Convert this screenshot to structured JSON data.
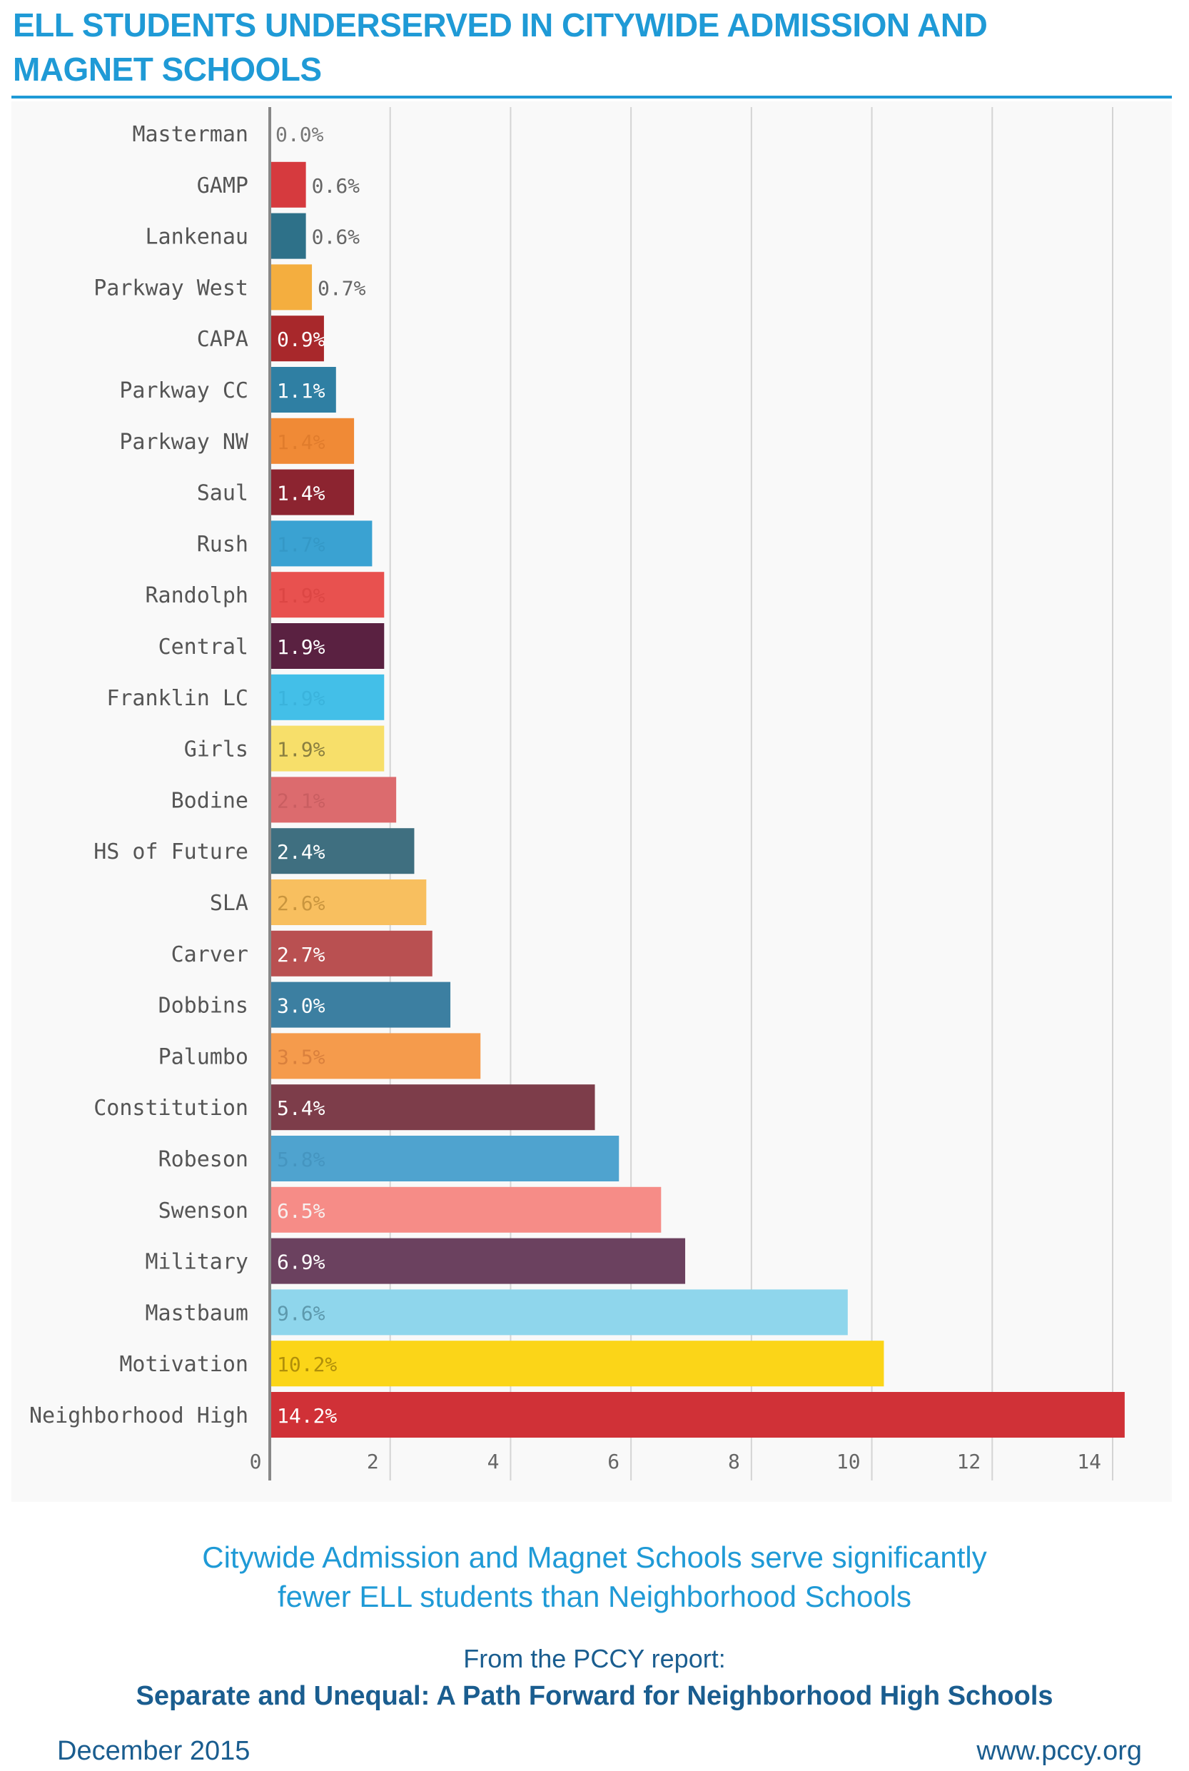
{
  "header": {
    "title_line1": "ELL STUDENTS UNDERSERVED IN CITYWIDE ADMISSION AND",
    "title_line2": "MAGNET SCHOOLS"
  },
  "chart_data": {
    "type": "bar",
    "orientation": "horizontal",
    "title": "",
    "xlabel": "",
    "ylabel": "",
    "xlim": [
      0,
      14.2
    ],
    "x_ticks": [
      "0",
      "2",
      "4",
      "6",
      "8",
      "10",
      "12",
      "14"
    ],
    "x_tick_values": [
      0,
      2,
      4,
      6,
      8,
      10,
      12,
      14
    ],
    "grid": "vertical",
    "legend": "none",
    "categories": [
      "Masterman",
      "GAMP",
      "Lankenau",
      "Parkway West",
      "CAPA",
      "Parkway CC",
      "Parkway NW",
      "Saul",
      "Rush",
      "Randolph",
      "Central",
      "Franklin LC",
      "Girls",
      "Bodine",
      "HS of Future",
      "SLA",
      "Carver",
      "Dobbins",
      "Palumbo",
      "Constitution",
      "Robeson",
      "Swenson",
      "Military",
      "Mastbaum",
      "Motivation",
      "Neighborhood High"
    ],
    "values": [
      0.0,
      0.6,
      0.6,
      0.7,
      0.9,
      1.1,
      1.4,
      1.4,
      1.7,
      1.9,
      1.9,
      1.9,
      1.9,
      2.1,
      2.4,
      2.6,
      2.7,
      3.0,
      3.5,
      5.4,
      5.8,
      6.5,
      6.9,
      9.6,
      10.2,
      14.2
    ],
    "labels": [
      "0.0%",
      "0.6%",
      "0.6%",
      "0.7%",
      "0.9%",
      "1.1%",
      "1.4%",
      "1.4%",
      "1.7%",
      "1.9%",
      "1.9%",
      "1.9%",
      "1.9%",
      "2.1%",
      "2.4%",
      "2.6%",
      "2.7%",
      "3.0%",
      "3.5%",
      "5.4%",
      "5.8%",
      "6.5%",
      "6.9%",
      "9.6%",
      "10.2%",
      "14.2%"
    ],
    "colors": [
      "#9a9a9a",
      "#d63a3e",
      "#2e7189",
      "#f4ae3f",
      "#a8282b",
      "#2f7fa3",
      "#f08a36",
      "#8c2430",
      "#3aa2d2",
      "#e8514f",
      "#5a2141",
      "#43bfe8",
      "#f7df6a",
      "#dc6b6e",
      "#3f6f80",
      "#f8bf5f",
      "#b95051",
      "#3c7fa1",
      "#f59b4c",
      "#7d3d4a",
      "#4fa3cf",
      "#f68c87",
      "#6b415f",
      "#8fd6ec",
      "#fbd518",
      "#d03137"
    ],
    "label_colors": [
      "#777777",
      "#666666",
      "#666666",
      "#666666",
      "#ffffff",
      "#ffffff",
      "#e07c2c",
      "#ffffff",
      "#3498c6",
      "#dc4644",
      "#ffffff",
      "#3ab3dc",
      "#8a7f40",
      "#c95e61",
      "#ffffff",
      "#c9953e",
      "#ffffff",
      "#ffffff",
      "#d9803d",
      "#ffffff",
      "#4595c0",
      "#f7f0ef",
      "#ffffff",
      "#5d99ad",
      "#b08f0a",
      "#ffffff"
    ],
    "label_inside": [
      false,
      false,
      false,
      false,
      true,
      true,
      true,
      true,
      true,
      true,
      true,
      true,
      true,
      true,
      true,
      true,
      true,
      true,
      true,
      true,
      true,
      true,
      true,
      true,
      true,
      true
    ]
  },
  "captions": {
    "line1": "Citywide Admission and Magnet Schools serve significantly",
    "line2": "fewer ELL students than Neighborhood Schools"
  },
  "source": {
    "intro": "From the PCCY report:",
    "report_title": "Separate and Unequal: A Path Forward for Neighborhood High Schools"
  },
  "footer": {
    "date": "December 2015",
    "website": "www.pccy.org"
  }
}
